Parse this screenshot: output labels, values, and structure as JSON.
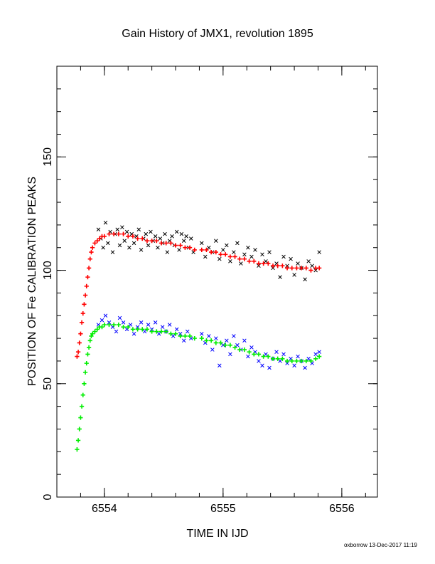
{
  "chart_data": {
    "type": "scatter",
    "title": "Gain History of JMX1, revolution 1895",
    "xlabel": "TIME IN IJD",
    "ylabel": "POSITION OF Fe CALIBRATION PEAKS",
    "xlim": [
      6553.6,
      6556.3
    ],
    "ylim": [
      0,
      190
    ],
    "x_ticks": [
      6554,
      6555,
      6556
    ],
    "y_ticks": [
      0,
      50,
      100,
      150
    ],
    "x_minor_step": 0.2,
    "y_minor_step": 10,
    "grid": false,
    "footer": "oxborrow 13-Dec-2017 11:19",
    "colors": {
      "upper_measured": "#000000",
      "upper_smoothed": "#ff0000",
      "lower_measured": "#0000ff",
      "lower_smoothed": "#00ee00"
    },
    "series": [
      {
        "marker": "x",
        "color": "#000000",
        "x": [
          6553.95,
          6553.97,
          6553.99,
          6554.01,
          6554.03,
          6554.05,
          6554.07,
          6554.09,
          6554.11,
          6554.13,
          6554.15,
          6554.17,
          6554.19,
          6554.21,
          6554.23,
          6554.25,
          6554.27,
          6554.29,
          6554.31,
          6554.33,
          6554.35,
          6554.37,
          6554.39,
          6554.41,
          6554.43,
          6554.45,
          6554.47,
          6554.49,
          6554.51,
          6554.53,
          6554.55,
          6554.57,
          6554.59,
          6554.61,
          6554.63,
          6554.65,
          6554.67,
          6554.69,
          6554.71,
          6554.73,
          6554.75,
          6554.82,
          6554.85,
          6554.88,
          6554.91,
          6554.94,
          6554.97,
          6555.0,
          6555.03,
          6555.06,
          6555.09,
          6555.12,
          6555.15,
          6555.18,
          6555.21,
          6555.24,
          6555.27,
          6555.3,
          6555.33,
          6555.36,
          6555.39,
          6555.42,
          6555.45,
          6555.48,
          6555.51,
          6555.54,
          6555.57,
          6555.6,
          6555.63,
          6555.66,
          6555.69,
          6555.72,
          6555.75,
          6555.78,
          6555.81
        ],
        "y": [
          118,
          114,
          110,
          121,
          112,
          117,
          108,
          116,
          118,
          111,
          119,
          113,
          117,
          110,
          116,
          112,
          115,
          118,
          109,
          114,
          116,
          111,
          117,
          113,
          115,
          110,
          114,
          112,
          116,
          108,
          113,
          115,
          111,
          117,
          109,
          116,
          113,
          115,
          110,
          114,
          108,
          112,
          106,
          110,
          108,
          113,
          105,
          109,
          111,
          104,
          108,
          112,
          103,
          107,
          110,
          106,
          109,
          102,
          107,
          104,
          108,
          101,
          103,
          97,
          106,
          102,
          105,
          98,
          103,
          101,
          96,
          104,
          102,
          100,
          108
        ]
      },
      {
        "marker": "+",
        "color": "#ff0000",
        "x": [
          6553.77,
          6553.78,
          6553.79,
          6553.8,
          6553.81,
          6553.82,
          6553.83,
          6553.84,
          6553.85,
          6553.86,
          6553.87,
          6553.88,
          6553.89,
          6553.9,
          6553.92,
          6553.94,
          6553.96,
          6553.98,
          6554.0,
          6554.04,
          6554.08,
          6554.12,
          6554.16,
          6554.2,
          6554.24,
          6554.28,
          6554.32,
          6554.36,
          6554.4,
          6554.44,
          6554.48,
          6554.52,
          6554.56,
          6554.6,
          6554.64,
          6554.68,
          6554.72,
          6554.76,
          6554.82,
          6554.86,
          6554.9,
          6554.94,
          6554.98,
          6555.02,
          6555.06,
          6555.1,
          6555.14,
          6555.18,
          6555.22,
          6555.26,
          6555.3,
          6555.34,
          6555.38,
          6555.42,
          6555.46,
          6555.5,
          6555.54,
          6555.58,
          6555.62,
          6555.66,
          6555.7,
          6555.74,
          6555.78,
          6555.81
        ],
        "y": [
          62,
          64,
          68,
          72,
          77,
          81,
          85,
          89,
          93,
          97,
          101,
          105,
          108,
          110,
          112,
          113,
          114,
          115,
          115,
          116,
          116,
          116,
          116,
          115,
          115,
          114,
          114,
          113,
          113,
          113,
          112,
          112,
          112,
          111,
          111,
          110,
          110,
          109,
          109,
          109,
          108,
          108,
          107,
          107,
          106,
          106,
          105,
          105,
          104,
          104,
          103,
          103,
          103,
          102,
          102,
          102,
          101,
          101,
          101,
          101,
          101,
          100,
          101,
          101
        ]
      },
      {
        "marker": "x",
        "color": "#0000ff",
        "x": [
          6553.95,
          6553.98,
          6554.01,
          6554.04,
          6554.07,
          6554.1,
          6554.13,
          6554.16,
          6554.19,
          6554.22,
          6554.25,
          6554.28,
          6554.31,
          6554.34,
          6554.37,
          6554.4,
          6554.43,
          6554.46,
          6554.49,
          6554.52,
          6554.55,
          6554.58,
          6554.61,
          6554.64,
          6554.67,
          6554.7,
          6554.73,
          6554.82,
          6554.85,
          6554.88,
          6554.91,
          6554.94,
          6554.97,
          6555.0,
          6555.03,
          6555.06,
          6555.09,
          6555.12,
          6555.15,
          6555.18,
          6555.21,
          6555.24,
          6555.27,
          6555.3,
          6555.33,
          6555.36,
          6555.39,
          6555.42,
          6555.45,
          6555.48,
          6555.51,
          6555.54,
          6555.57,
          6555.6,
          6555.63,
          6555.66,
          6555.69,
          6555.72,
          6555.75,
          6555.78,
          6555.81
        ],
        "y": [
          76,
          78,
          80,
          77,
          75,
          73,
          79,
          77,
          74,
          76,
          72,
          75,
          77,
          73,
          76,
          74,
          77,
          72,
          75,
          73,
          76,
          71,
          74,
          72,
          69,
          73,
          70,
          72,
          68,
          71,
          65,
          70,
          58,
          67,
          69,
          63,
          71,
          67,
          65,
          69,
          62,
          66,
          64,
          60,
          58,
          63,
          57,
          61,
          64,
          60,
          63,
          59,
          61,
          58,
          62,
          60,
          57,
          61,
          59,
          63,
          64
        ]
      },
      {
        "marker": "+",
        "color": "#00ee00",
        "x": [
          6553.77,
          6553.78,
          6553.79,
          6553.8,
          6553.81,
          6553.82,
          6553.83,
          6553.84,
          6553.85,
          6553.86,
          6553.87,
          6553.88,
          6553.89,
          6553.9,
          6553.92,
          6553.94,
          6553.96,
          6553.98,
          6554.0,
          6554.04,
          6554.08,
          6554.12,
          6554.16,
          6554.2,
          6554.24,
          6554.28,
          6554.32,
          6554.36,
          6554.4,
          6554.44,
          6554.48,
          6554.52,
          6554.56,
          6554.6,
          6554.64,
          6554.68,
          6554.72,
          6554.76,
          6554.82,
          6554.86,
          6554.9,
          6554.94,
          6554.98,
          6555.02,
          6555.06,
          6555.1,
          6555.14,
          6555.18,
          6555.22,
          6555.26,
          6555.3,
          6555.34,
          6555.38,
          6555.42,
          6555.46,
          6555.5,
          6555.54,
          6555.58,
          6555.62,
          6555.66,
          6555.7,
          6555.74,
          6555.78,
          6555.81
        ],
        "y": [
          21,
          25,
          30,
          35,
          40,
          45,
          50,
          55,
          59,
          63,
          66,
          69,
          71,
          72,
          73,
          74,
          75,
          75,
          76,
          76,
          76,
          76,
          75,
          75,
          74,
          74,
          74,
          74,
          73,
          73,
          73,
          73,
          72,
          72,
          71,
          71,
          71,
          70,
          70,
          69,
          69,
          68,
          68,
          67,
          67,
          66,
          65,
          65,
          64,
          63,
          63,
          62,
          62,
          61,
          61,
          61,
          60,
          60,
          60,
          60,
          60,
          60,
          61,
          62
        ]
      }
    ]
  }
}
